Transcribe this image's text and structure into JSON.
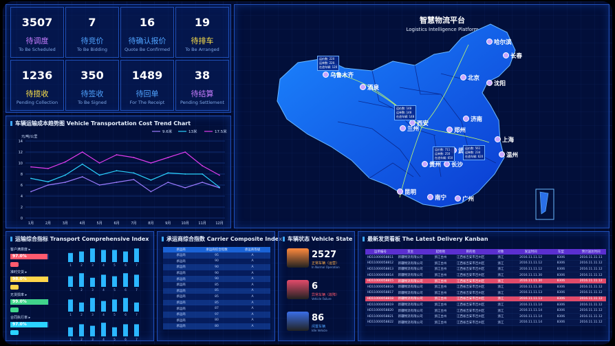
{
  "stats": [
    {
      "num": "3507",
      "cn": "待调度",
      "en": "To Be Scheduled",
      "color": "#c77dff"
    },
    {
      "num": "7",
      "cn": "待竞价",
      "en": "To Be Bidding",
      "color": "#4fa3ff"
    },
    {
      "num": "16",
      "cn": "待确认报价",
      "en": "Quote Be Confirmed",
      "color": "#4fa3ff"
    },
    {
      "num": "19",
      "cn": "待排车",
      "en": "To Be Arranged",
      "color": "#ffe34a"
    },
    {
      "num": "1236",
      "cn": "待揽收",
      "en": "Pending Collection",
      "color": "#ffe34a"
    },
    {
      "num": "350",
      "cn": "待签收",
      "en": "To Be Signed",
      "color": "#4fa3ff"
    },
    {
      "num": "1489",
      "cn": "待回单",
      "en": "For The Receipt",
      "color": "#4fa3ff"
    },
    {
      "num": "38",
      "cn": "待结算",
      "en": "Pending Settlement",
      "color": "#c77dff"
    }
  ],
  "platform": {
    "title": "智慧物流平台",
    "subtitle": "Logistics Intelligence Platform"
  },
  "map": {
    "cities": [
      "乌鲁木齐",
      "哈尔滨",
      "长春",
      "沈阳",
      "北京",
      "酒泉",
      "济南",
      "西安",
      "郑州",
      "兰州",
      "上海",
      "温州",
      "武汉",
      "贵州",
      "长沙",
      "昆明",
      "南宁",
      "广州"
    ],
    "tips": [
      {
        "a": "运价数: 220",
        "b": "运单数: 220",
        "c": "在途车辆: 120"
      },
      {
        "a": "运价数: 148",
        "b": "运单数: 148",
        "c": "在途车辆: 148"
      },
      {
        "a": "运价数: 711",
        "b": "运单数: 250",
        "c": "在途车辆: 650"
      },
      {
        "a": "运价数: 561",
        "b": "运单数: 234",
        "c": "在途车辆: 620"
      }
    ]
  },
  "cost": {
    "title": "车辆运输成本趋势图 Vehicle Transportation Cost Trend Chart",
    "unit": "元/吨/公里"
  },
  "chart_data": {
    "type": "line",
    "categories": [
      "1月",
      "2月",
      "3月",
      "4月",
      "5月",
      "6月",
      "7月",
      "8月",
      "9月",
      "10月",
      "11月",
      "12月"
    ],
    "series": [
      {
        "name": "9.6米",
        "color": "#9c7bff",
        "values": [
          4.8,
          6,
          6.5,
          7.5,
          6,
          6.5,
          7,
          4.8,
          6.5,
          5.5,
          6.5,
          5.5
        ]
      },
      {
        "name": "13米",
        "color": "#2bd3ff",
        "values": [
          7.2,
          6.6,
          7.8,
          9.8,
          7.8,
          8.6,
          8.2,
          6.9,
          8.2,
          8,
          8,
          5.6
        ]
      },
      {
        "name": "17.5米",
        "color": "#e23cf0",
        "values": [
          9.3,
          9,
          10.2,
          12,
          10,
          11.5,
          11,
          10,
          11,
          12,
          9.5,
          7.8
        ]
      }
    ],
    "ylim": [
      0,
      14
    ],
    "yticks": [
      "0",
      "2",
      "4",
      "6",
      "8",
      "10",
      "12",
      "14"
    ]
  },
  "transport": {
    "title": "运输综合指标 Transport Comprehensive Index",
    "rows": [
      {
        "label": "客户满意度 ▸",
        "pct": "97.0%",
        "fill": 0.97,
        "color": "#ff5a6e"
      },
      {
        "label": "准时交货 ▸",
        "pct": "98.0%",
        "fill": 0.98,
        "color": "#ffd54a"
      },
      {
        "label": "无货损率 ▸",
        "pct": "99.0%",
        "fill": 0.99,
        "color": "#40d48b"
      },
      {
        "label": "合同执行率 ▸",
        "pct": "97.0%",
        "fill": 0.97,
        "color": "#2bd3ff"
      }
    ],
    "bars": [
      {
        "values": [
          6,
          7,
          9,
          8,
          8,
          7,
          9
        ],
        "labels": [
          "1",
          "2",
          "3",
          "4",
          "5",
          "6",
          "7"
        ]
      },
      {
        "values": [
          7,
          9,
          6,
          8,
          7,
          9,
          8
        ],
        "labels": [
          "1",
          "2",
          "3",
          "4",
          "5",
          "6",
          "7"
        ]
      },
      {
        "values": [
          8,
          6,
          9,
          7,
          8,
          9,
          6
        ],
        "labels": [
          "1",
          "2",
          "3",
          "4",
          "5",
          "6",
          "7"
        ]
      },
      {
        "values": [
          6,
          8,
          7,
          9,
          6,
          8,
          8
        ],
        "labels": [
          "1",
          "2",
          "3",
          "4",
          "5",
          "6",
          "7"
        ]
      }
    ]
  },
  "carrier": {
    "title": "承运商综合指数 Carrier Composite Index",
    "headers": [
      "承运商",
      "承运商综合指数",
      "承运商等级"
    ],
    "rows": [
      [
        "承运商",
        "95",
        "A"
      ],
      [
        "承运商",
        "90",
        "A"
      ],
      [
        "承运商",
        "90",
        "A"
      ],
      [
        "承运商",
        "90",
        "A"
      ],
      [
        "承运商",
        "90",
        "A"
      ],
      [
        "承运商",
        "85",
        "A"
      ],
      [
        "承运商",
        "85",
        "A"
      ],
      [
        "承运商",
        "85",
        "A"
      ],
      [
        "承运商",
        "85",
        "A"
      ],
      [
        "承运商",
        "87",
        "A"
      ],
      [
        "承运商",
        "97",
        "A"
      ],
      [
        "承运商",
        "80",
        "A"
      ],
      [
        "承运商",
        "80",
        "A"
      ]
    ]
  },
  "vehicle": {
    "title": "车辆状态 Vehicle State",
    "items": [
      {
        "num": "2527",
        "cn": "正常车辆（运营）",
        "en": "In Normal Operation",
        "color": "#ff8a3d",
        "lcolor": "#ffb04a"
      },
      {
        "num": "6",
        "cn": "异常车辆（故障）",
        "en": "Vehicle Failure",
        "color": "#e24b6a",
        "lcolor": "#ff5a6e"
      },
      {
        "num": "86",
        "cn": "闲置车辆",
        "en": "Idle Vehicle",
        "color": "#3a6ee8",
        "lcolor": "#4fa3ff"
      }
    ]
  },
  "kanban": {
    "title": "最新发货看板 The Latest Delivery Kanban",
    "headers": [
      "运单编号",
      "货主",
      "起始地",
      "目的地",
      "对象",
      "发运时间",
      "车型",
      "预计送达时间"
    ],
    "rows": [
      {
        "hl": false,
        "c": [
          "HD11000058811",
          "新疆物流有限公司",
          "浙江台州",
          "江西省吉安市吉州区",
          "浙江",
          "2016.11.11.12",
          "8306",
          "2016.11.11.11"
        ]
      },
      {
        "hl": false,
        "c": [
          "HD11000058812",
          "新疆物流有限公司",
          "浙江台州",
          "江西省吉安市吉州区",
          "浙江",
          "2016.11.11.12",
          "8306",
          "2016.11.11.12"
        ]
      },
      {
        "hl": false,
        "c": [
          "HD11000058813",
          "新疆物流有限公司",
          "浙江台州",
          "江西省吉安市吉州区",
          "浙江",
          "2016.11.11.12",
          "8306",
          "2016.11.11.12"
        ]
      },
      {
        "hl": false,
        "c": [
          "HD11000058814",
          "新疆物流有限公司",
          "浙江台州",
          "江西省吉安市吉州区",
          "浙江",
          "2016.11.11.30",
          "8306",
          "2016.11.11.12"
        ]
      },
      {
        "hl": true,
        "c": [
          "HD11000058815",
          "新疆物流有限公司",
          "浙江台州",
          "江西省吉安市吉州区",
          "浙江",
          "2016.11.11.30",
          "8306",
          "2016.11.11.12"
        ]
      },
      {
        "hl": false,
        "c": [
          "HD11000058816",
          "新疆物流有限公司",
          "浙江台州",
          "江西省吉安市吉州区",
          "浙江",
          "2016.11.11.30",
          "8306",
          "2016.11.11.12"
        ]
      },
      {
        "hl": false,
        "c": [
          "HD11000058817",
          "新疆物流有限公司",
          "浙江台州",
          "江西省吉安市吉州区",
          "浙江",
          "2016.11.11.13",
          "8306",
          "2016.11.11.12"
        ]
      },
      {
        "hl": true,
        "c": [
          "HD11000058818",
          "新疆物流有限公司",
          "浙江台州",
          "江西省吉安市吉州区",
          "浙江",
          "2016.11.11.13",
          "8306",
          "2016.11.11.12"
        ]
      },
      {
        "hl": false,
        "c": [
          "HD11000058819",
          "新疆物流有限公司",
          "浙江台州",
          "江西省吉安市吉州区",
          "浙江",
          "2016.11.11.14",
          "8306",
          "2016.11.11.12"
        ]
      },
      {
        "hl": false,
        "c": [
          "HD11000058820",
          "新疆物流有限公司",
          "浙江台州",
          "江西省吉安市吉州区",
          "浙江",
          "2016.11.11.14",
          "8306",
          "2016.11.11.12"
        ]
      },
      {
        "hl": false,
        "c": [
          "HD11000058821",
          "新疆物流有限公司",
          "浙江台州",
          "江西省吉安市吉州区",
          "浙江",
          "2016.11.11.14",
          "8306",
          "2016.11.11.12"
        ]
      },
      {
        "hl": false,
        "c": [
          "HD11000058822",
          "新疆物流有限公司",
          "浙江台州",
          "江西省吉安市吉州区",
          "浙江",
          "2016.11.11.14",
          "8306",
          "2016.11.11.12"
        ]
      }
    ]
  }
}
